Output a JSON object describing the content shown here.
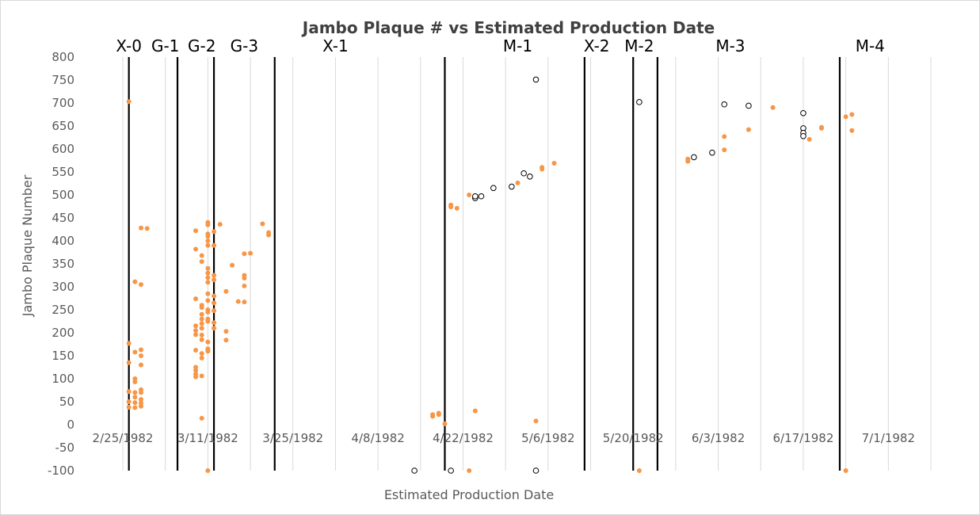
{
  "chart_data": {
    "type": "scatter",
    "title": "Jambo Plaque # vs Estimated Production Date",
    "xlabel": "Estimated Production Date",
    "ylabel": "Jambo Plaque Number",
    "ylim": [
      -100,
      800
    ],
    "yticks": [
      -100,
      -50,
      0,
      50,
      100,
      150,
      200,
      250,
      300,
      350,
      400,
      450,
      500,
      550,
      600,
      650,
      700,
      750,
      800
    ],
    "xlim": [
      "1982-02-19",
      "1982-07-08"
    ],
    "xticks": [
      {
        "date": "1982-02-25",
        "label": "2/25/1982"
      },
      {
        "date": "1982-03-11",
        "label": "3/11/1982"
      },
      {
        "date": "1982-03-25",
        "label": "3/25/1982"
      },
      {
        "date": "1982-04-08",
        "label": "4/8/1982"
      },
      {
        "date": "1982-04-22",
        "label": "4/22/1982"
      },
      {
        "date": "1982-05-06",
        "label": "5/6/1982"
      },
      {
        "date": "1982-05-20",
        "label": "5/20/1982"
      },
      {
        "date": "1982-06-03",
        "label": "6/3/1982"
      },
      {
        "date": "1982-06-17",
        "label": "6/17/1982"
      },
      {
        "date": "1982-07-01",
        "label": "7/1/1982"
      }
    ],
    "vertical_grid": true,
    "horizontal_grid": false,
    "phases": [
      {
        "label": "X-0",
        "date": "1982-02-26"
      },
      {
        "label": "G-1",
        "date": "1982-03-04"
      },
      {
        "label": "G-2",
        "date": "1982-03-10"
      },
      {
        "label": "G-3",
        "date": "1982-03-17"
      },
      {
        "label": "X-1",
        "date": "1982-04-01"
      },
      {
        "label": "M-1",
        "date": "1982-05-01"
      },
      {
        "label": "X-2",
        "date": "1982-05-14"
      },
      {
        "label": "M-2",
        "date": "1982-05-21"
      },
      {
        "label": "M-3",
        "date": "1982-06-05"
      },
      {
        "label": "M-4",
        "date": "1982-06-28"
      }
    ],
    "boundaries": [
      "1982-02-26",
      "1982-03-06",
      "1982-03-12",
      "1982-03-22",
      "1982-04-19",
      "1982-05-12",
      "1982-05-20",
      "1982-05-24",
      "1982-06-23"
    ],
    "series": [
      {
        "marker": "filled",
        "color": "#f79646",
        "points": [
          [
            "1982-02-26",
            703
          ],
          [
            "1982-02-26",
            177
          ],
          [
            "1982-02-26",
            135
          ],
          [
            "1982-02-26",
            72
          ],
          [
            "1982-02-26",
            50
          ],
          [
            "1982-02-26",
            38
          ],
          [
            "1982-02-27",
            311
          ],
          [
            "1982-02-27",
            158
          ],
          [
            "1982-02-27",
            100
          ],
          [
            "1982-02-27",
            93
          ],
          [
            "1982-02-27",
            70
          ],
          [
            "1982-02-27",
            60
          ],
          [
            "1982-02-27",
            48
          ],
          [
            "1982-02-27",
            37
          ],
          [
            "1982-02-28",
            428
          ],
          [
            "1982-02-28",
            305
          ],
          [
            "1982-02-28",
            163
          ],
          [
            "1982-02-28",
            130
          ],
          [
            "1982-02-28",
            76
          ],
          [
            "1982-02-28",
            70
          ],
          [
            "1982-02-28",
            55
          ],
          [
            "1982-02-28",
            47
          ],
          [
            "1982-02-28",
            40
          ],
          [
            "1982-02-28",
            150
          ],
          [
            "1982-03-01",
            427
          ],
          [
            "1982-03-09",
            422
          ],
          [
            "1982-03-09",
            382
          ],
          [
            "1982-03-09",
            274
          ],
          [
            "1982-03-09",
            215
          ],
          [
            "1982-03-09",
            205
          ],
          [
            "1982-03-09",
            196
          ],
          [
            "1982-03-09",
            162
          ],
          [
            "1982-03-09",
            125
          ],
          [
            "1982-03-09",
            118
          ],
          [
            "1982-03-09",
            104
          ],
          [
            "1982-03-09",
            110
          ],
          [
            "1982-03-10",
            368
          ],
          [
            "1982-03-10",
            355
          ],
          [
            "1982-03-10",
            260
          ],
          [
            "1982-03-10",
            240
          ],
          [
            "1982-03-10",
            230
          ],
          [
            "1982-03-10",
            220
          ],
          [
            "1982-03-10",
            210
          ],
          [
            "1982-03-10",
            195
          ],
          [
            "1982-03-10",
            155
          ],
          [
            "1982-03-10",
            145
          ],
          [
            "1982-03-10",
            106
          ],
          [
            "1982-03-10",
            14
          ],
          [
            "1982-03-10",
            185
          ],
          [
            "1982-03-10",
            255
          ],
          [
            "1982-03-11",
            435
          ],
          [
            "1982-03-11",
            390
          ],
          [
            "1982-03-11",
            340
          ],
          [
            "1982-03-11",
            330
          ],
          [
            "1982-03-11",
            320
          ],
          [
            "1982-03-11",
            310
          ],
          [
            "1982-03-11",
            285
          ],
          [
            "1982-03-11",
            270
          ],
          [
            "1982-03-11",
            250
          ],
          [
            "1982-03-11",
            245
          ],
          [
            "1982-03-11",
            230
          ],
          [
            "1982-03-11",
            225
          ],
          [
            "1982-03-11",
            180
          ],
          [
            "1982-03-11",
            165
          ],
          [
            "1982-03-11",
            160
          ],
          [
            "1982-03-11",
            410
          ],
          [
            "1982-03-11",
            400
          ],
          [
            "1982-03-11",
            415
          ],
          [
            "1982-03-11",
            440
          ],
          [
            "1982-03-12",
            420
          ],
          [
            "1982-03-12",
            390
          ],
          [
            "1982-03-12",
            325
          ],
          [
            "1982-03-12",
            315
          ],
          [
            "1982-03-12",
            280
          ],
          [
            "1982-03-12",
            265
          ],
          [
            "1982-03-12",
            248
          ],
          [
            "1982-03-12",
            222
          ],
          [
            "1982-03-12",
            210
          ],
          [
            "1982-03-11",
            -100
          ],
          [
            "1982-03-13",
            436
          ],
          [
            "1982-03-14",
            290
          ],
          [
            "1982-03-14",
            203
          ],
          [
            "1982-03-14",
            184
          ],
          [
            "1982-03-15",
            347
          ],
          [
            "1982-03-16",
            268
          ],
          [
            "1982-03-17",
            372
          ],
          [
            "1982-03-17",
            325
          ],
          [
            "1982-03-17",
            319
          ],
          [
            "1982-03-17",
            302
          ],
          [
            "1982-03-17",
            267
          ],
          [
            "1982-03-18",
            373
          ],
          [
            "1982-03-20",
            437
          ],
          [
            "1982-03-21",
            418
          ],
          [
            "1982-03-21",
            413
          ],
          [
            "1982-04-17",
            22
          ],
          [
            "1982-04-17",
            18
          ],
          [
            "1982-04-18",
            25
          ],
          [
            "1982-04-18",
            22
          ],
          [
            "1982-04-19",
            2
          ],
          [
            "1982-04-20",
            478
          ],
          [
            "1982-04-20",
            474
          ],
          [
            "1982-04-21",
            471
          ],
          [
            "1982-04-23",
            500
          ],
          [
            "1982-04-24",
            30
          ],
          [
            "1982-04-23",
            -100
          ],
          [
            "1982-05-01",
            526
          ],
          [
            "1982-05-04",
            8
          ],
          [
            "1982-05-05",
            556
          ],
          [
            "1982-05-05",
            560
          ],
          [
            "1982-05-07",
            569
          ],
          [
            "1982-05-21",
            -100
          ],
          [
            "1982-05-29",
            573
          ],
          [
            "1982-05-29",
            578
          ],
          [
            "1982-06-04",
            598
          ],
          [
            "1982-06-04",
            627
          ],
          [
            "1982-06-08",
            642
          ],
          [
            "1982-06-12",
            690
          ],
          [
            "1982-06-18",
            621
          ],
          [
            "1982-06-20",
            645
          ],
          [
            "1982-06-20",
            647
          ],
          [
            "1982-06-24",
            670
          ],
          [
            "1982-06-25",
            675
          ],
          [
            "1982-06-25",
            640
          ],
          [
            "1982-06-24",
            -100
          ]
        ]
      },
      {
        "marker": "hollow",
        "color": "#000000",
        "points": [
          [
            "1982-04-14",
            -100
          ],
          [
            "1982-04-20",
            -100
          ],
          [
            "1982-04-24",
            493
          ],
          [
            "1982-04-24",
            497
          ],
          [
            "1982-04-25",
            497
          ],
          [
            "1982-04-27",
            515
          ],
          [
            "1982-04-30",
            518
          ],
          [
            "1982-05-02",
            547
          ],
          [
            "1982-05-03",
            540
          ],
          [
            "1982-05-04",
            751
          ],
          [
            "1982-05-04",
            -100
          ],
          [
            "1982-05-21",
            702
          ],
          [
            "1982-05-30",
            582
          ],
          [
            "1982-06-02",
            592
          ],
          [
            "1982-06-04",
            697
          ],
          [
            "1982-06-08",
            694
          ],
          [
            "1982-06-17",
            678
          ],
          [
            "1982-06-17",
            645
          ],
          [
            "1982-06-17",
            635
          ],
          [
            "1982-06-17",
            628
          ]
        ]
      }
    ]
  }
}
